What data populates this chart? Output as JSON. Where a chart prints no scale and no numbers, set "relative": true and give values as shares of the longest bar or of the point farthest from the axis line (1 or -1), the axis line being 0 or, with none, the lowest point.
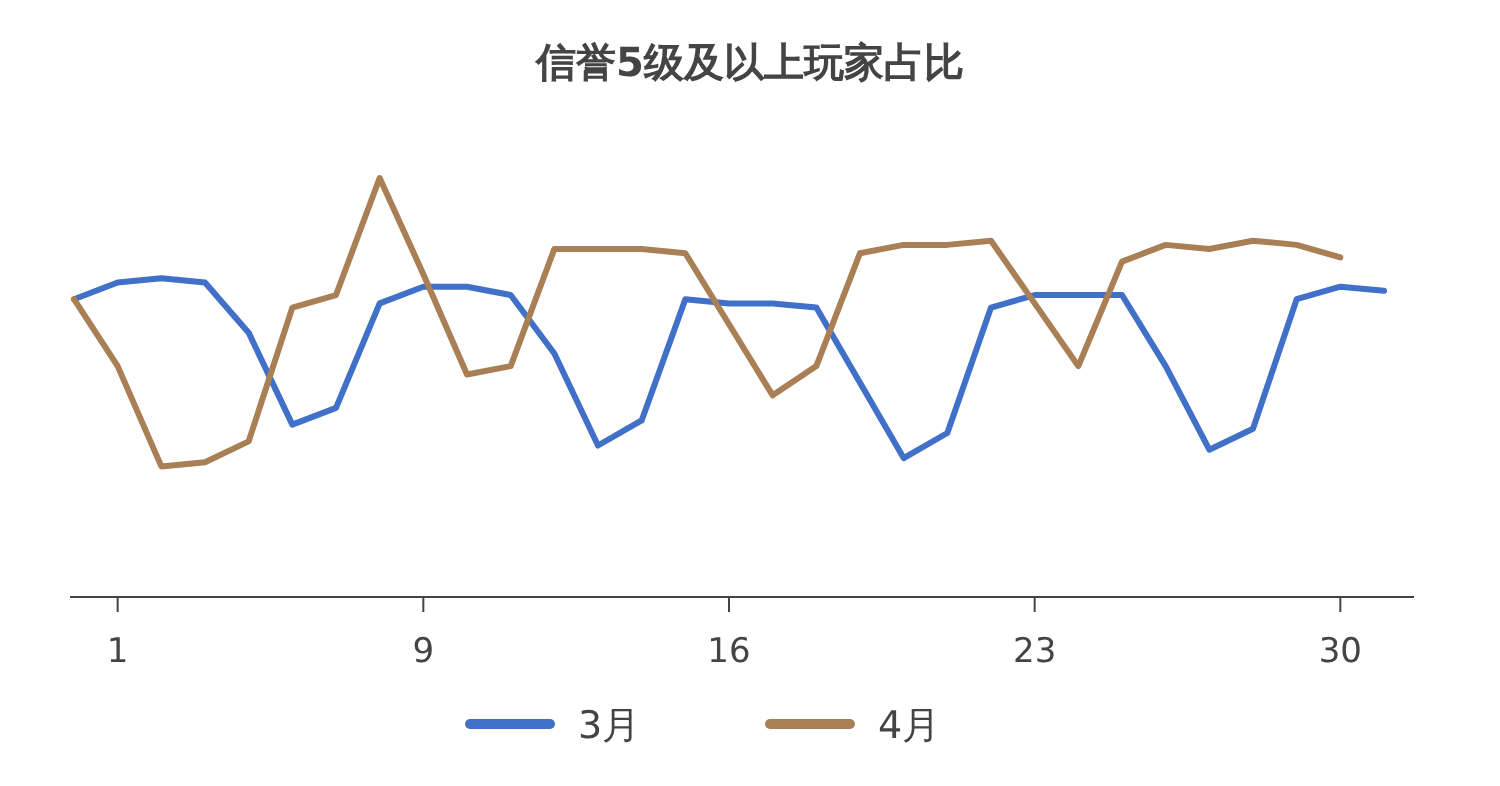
{
  "chart_data": {
    "type": "line",
    "title": "信誉5级及以上玩家占比",
    "relative": true,
    "categories": [
      null,
      "1",
      null,
      null,
      null,
      null,
      null,
      null,
      "9",
      null,
      null,
      null,
      null,
      null,
      null,
      "16",
      null,
      null,
      null,
      null,
      null,
      null,
      "23",
      null,
      null,
      null,
      null,
      null,
      null,
      "30",
      null
    ],
    "series": [
      {
        "name": "3月",
        "color": "#4070c8",
        "values": [
          0.71,
          0.75,
          0.76,
          0.75,
          0.63,
          0.41,
          0.45,
          0.7,
          0.74,
          0.74,
          0.72,
          0.58,
          0.36,
          0.42,
          0.71,
          0.7,
          0.7,
          0.69,
          0.51,
          0.33,
          0.39,
          0.69,
          0.72,
          0.72,
          0.72,
          0.55,
          0.35,
          0.4,
          0.71,
          0.74,
          0.73
        ]
      },
      {
        "name": "4月",
        "color": "#a97f55",
        "values": [
          0.71,
          0.55,
          0.31,
          0.32,
          0.37,
          0.69,
          0.72,
          1,
          0.77,
          0.53,
          0.55,
          0.83,
          0.83,
          0.83,
          0.82,
          0.65,
          0.48,
          0.55,
          0.82,
          0.84,
          0.84,
          0.85,
          0.7,
          0.55,
          0.8,
          0.84,
          0.83,
          0.85,
          0.84,
          0.81,
          null
        ]
      }
    ],
    "legend": "bottom",
    "marker": "none",
    "line_style": "solid"
  }
}
